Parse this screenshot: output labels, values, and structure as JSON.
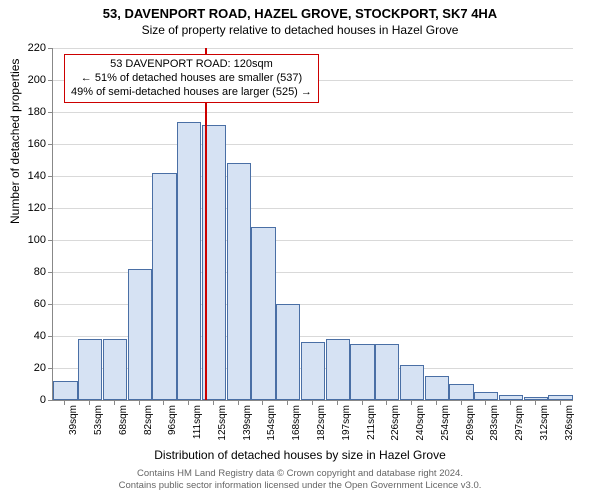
{
  "title": "53, DAVENPORT ROAD, HAZEL GROVE, STOCKPORT, SK7 4HA",
  "subtitle": "Size of property relative to detached houses in Hazel Grove",
  "ylabel": "Number of detached properties",
  "xlabel": "Distribution of detached houses by size in Hazel Grove",
  "footer1": "Contains HM Land Registry data © Crown copyright and database right 2024.",
  "footer2": "Contains public sector information licensed under the Open Government Licence v3.0.",
  "chart": {
    "type": "histogram",
    "ylim": [
      0,
      220
    ],
    "ytick_step": 20,
    "bar_fill": "#d6e2f3",
    "bar_border": "#4a6fa5",
    "grid_color": "#d9d9d9",
    "background": "#ffffff",
    "refline_color": "#cc0000",
    "refline_x": 120,
    "categories": [
      "39sqm",
      "53sqm",
      "68sqm",
      "82sqm",
      "96sqm",
      "111sqm",
      "125sqm",
      "139sqm",
      "154sqm",
      "168sqm",
      "182sqm",
      "197sqm",
      "211sqm",
      "226sqm",
      "240sqm",
      "254sqm",
      "269sqm",
      "283sqm",
      "297sqm",
      "312sqm",
      "326sqm"
    ],
    "values": [
      12,
      38,
      38,
      82,
      142,
      174,
      172,
      148,
      108,
      60,
      36,
      38,
      35,
      35,
      22,
      15,
      10,
      5,
      3,
      2,
      3
    ],
    "annotation": {
      "line1": "53 DAVENPORT ROAD: 120sqm",
      "line2": "← 51% of detached houses are smaller (537)",
      "line3": "49% of semi-detached houses are larger (525) →",
      "border_color": "#cc0000"
    }
  }
}
